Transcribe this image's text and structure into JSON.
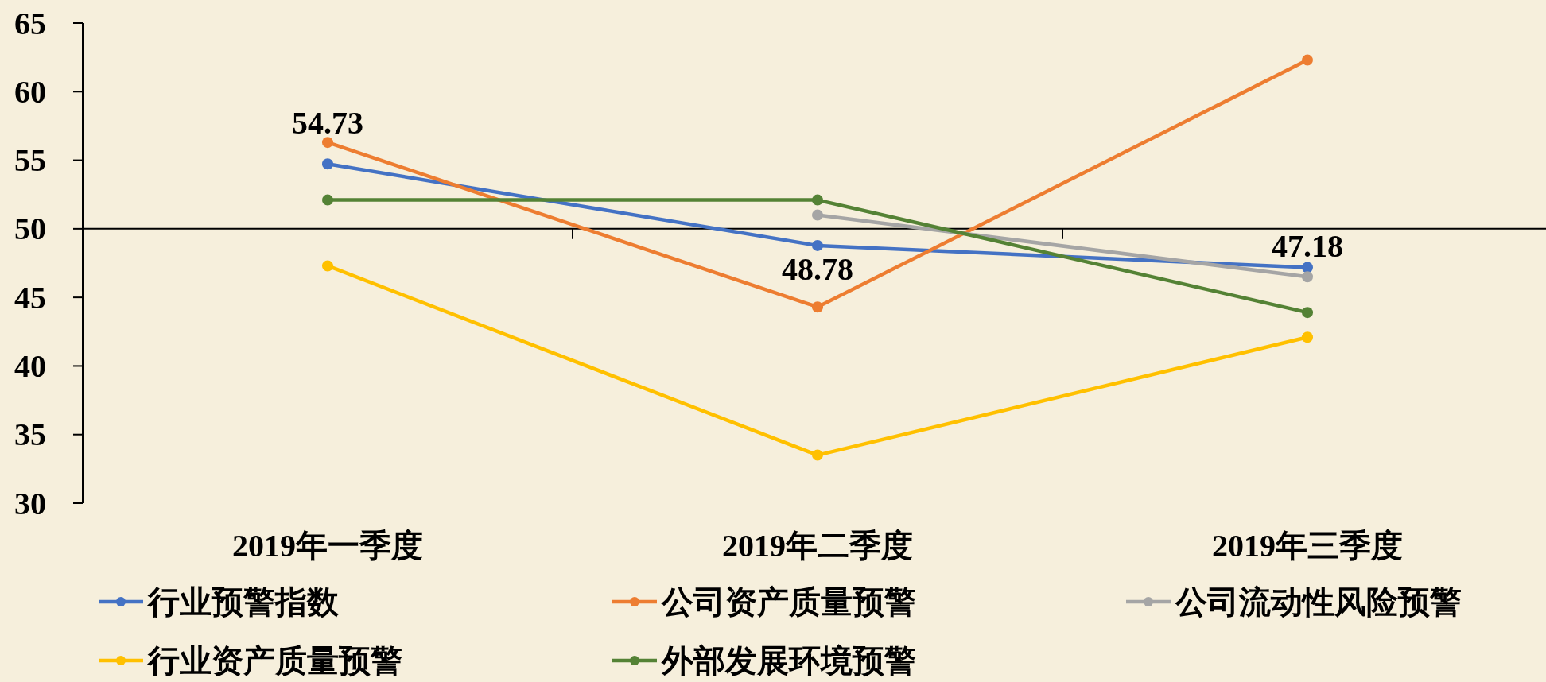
{
  "chart_data": {
    "type": "line",
    "categories": [
      "2019年一季度",
      "2019年二季度",
      "2019年三季度"
    ],
    "series": [
      {
        "name": "行业预警指数",
        "color": "#4472c4",
        "values": [
          54.73,
          48.78,
          47.18
        ],
        "value_labels": [
          "54.73",
          "48.78",
          "47.18"
        ]
      },
      {
        "name": "公司资产质量预警",
        "color": "#ed7d31",
        "values": [
          56.3,
          44.3,
          62.3
        ]
      },
      {
        "name": "公司流动性风险预警",
        "color": "#a5a5a5",
        "values": [
          null,
          51.0,
          46.5
        ]
      },
      {
        "name": "行业资产质量预警",
        "color": "#ffc000",
        "values": [
          47.3,
          33.5,
          42.1
        ]
      },
      {
        "name": "外部发展环境预警",
        "color": "#548235",
        "values": [
          52.1,
          52.1,
          43.9
        ]
      }
    ],
    "ylim": [
      30,
      65
    ],
    "yticks": [
      30,
      35,
      40,
      45,
      50,
      55,
      60,
      65
    ],
    "ref_lines": [
      {
        "axis": "y",
        "value": 50,
        "color": "#000000"
      }
    ],
    "grid": false,
    "legend": "bottom",
    "marker": "circle",
    "line_style": "solid"
  }
}
